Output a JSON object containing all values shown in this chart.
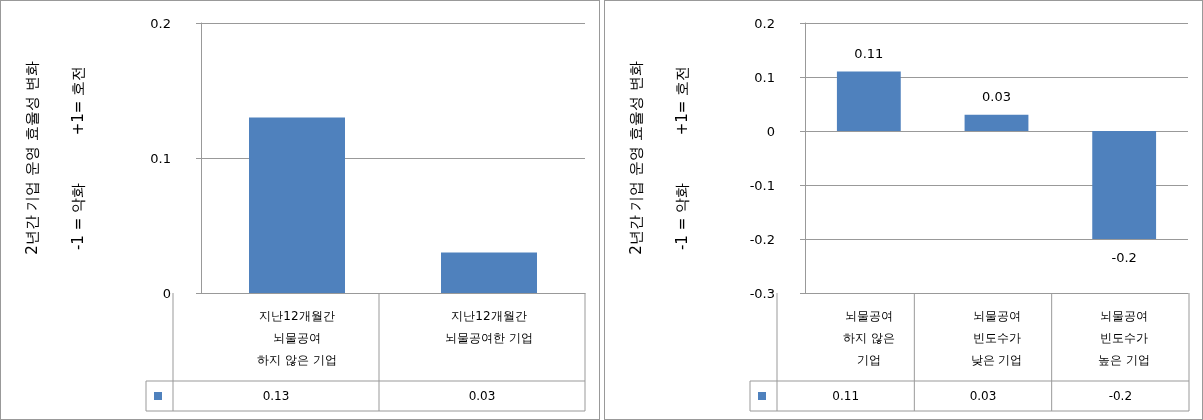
{
  "chart_data": [
    {
      "type": "bar",
      "ylabel": "2년간 기업 운영 효율성 변화\n-1 = 악화          +1= 호전",
      "categories": [
        "지난12개월간\n뇌물공여\n하지 않은 기업",
        "지난12개월간\n뇌물공여한 기업"
      ],
      "values": [
        0.13,
        0.03
      ],
      "color": "#4f81bd",
      "ylim": [
        0,
        0.2
      ],
      "yticks": [
        0,
        0.1,
        0.2
      ],
      "grid": "y",
      "data_labels": true
    },
    {
      "type": "bar",
      "ylabel": "2년간 기업 운영 효율성 변화\n-1 = 악화          +1= 호전",
      "categories": [
        "뇌물공여\n하지 않은\n기업",
        "뇌물공여\n빈도수가\n낮은 기업",
        "뇌물공여\n빈도수가\n높은 기업"
      ],
      "values": [
        0.11,
        0.03,
        -0.2
      ],
      "annotations": [
        {
          "text": "0.11",
          "x": "뇌물공여\n하지 않은\n기업",
          "y": 0.11
        },
        {
          "text": "0.03",
          "x": "뇌물공여\n빈도수가\n낮은 기업",
          "y": 0.03
        },
        {
          "text": "-0.2",
          "x": "뇌물공여\n빈도수가\n높은 기업",
          "y": -0.2
        }
      ],
      "color": "#4f81bd",
      "ylim": [
        -0.3,
        0.2
      ],
      "yticks": [
        -0.3,
        -0.2,
        -0.1,
        0,
        0.1,
        0.2
      ],
      "grid": "y",
      "data_labels": true
    }
  ]
}
